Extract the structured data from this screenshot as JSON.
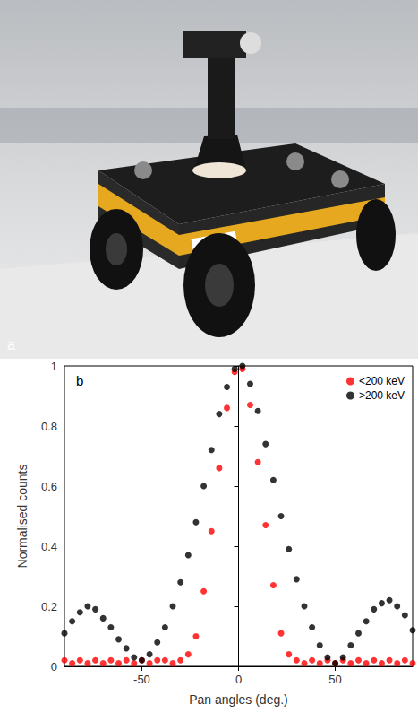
{
  "photo_panel": {
    "label": "a"
  },
  "chart_data": {
    "type": "scatter",
    "panel_label": "b",
    "xlabel": "Pan angles (deg.)",
    "ylabel": "Normalised counts",
    "x": [
      -90,
      -86,
      -82,
      -78,
      -74,
      -70,
      -66,
      -62,
      -58,
      -54,
      -50,
      -46,
      -42,
      -38,
      -34,
      -30,
      -26,
      -22,
      -18,
      -14,
      -10,
      -6,
      -2,
      2,
      6,
      10,
      14,
      18,
      22,
      26,
      30,
      34,
      38,
      42,
      46,
      50,
      54,
      58,
      62,
      66,
      70,
      74,
      78,
      82,
      86,
      90
    ],
    "series": [
      {
        "name": "<200 keV",
        "color": "#ff0000",
        "marker": "circle",
        "values": [
          0.02,
          0.01,
          0.02,
          0.01,
          0.02,
          0.01,
          0.02,
          0.01,
          0.02,
          0.01,
          0.02,
          0.01,
          0.02,
          0.02,
          0.01,
          0.02,
          0.04,
          0.1,
          0.25,
          0.45,
          0.66,
          0.86,
          0.98,
          0.99,
          0.87,
          0.68,
          0.47,
          0.27,
          0.11,
          0.04,
          0.02,
          0.01,
          0.02,
          0.01,
          0.02,
          0.01,
          0.02,
          0.01,
          0.02,
          0.01,
          0.02,
          0.01,
          0.02,
          0.01,
          0.02,
          0.01
        ]
      },
      {
        "name": ">200 keV",
        "color": "#000000",
        "marker": "circle",
        "values": [
          0.11,
          0.15,
          0.18,
          0.2,
          0.19,
          0.16,
          0.13,
          0.09,
          0.06,
          0.03,
          0.02,
          0.04,
          0.08,
          0.13,
          0.2,
          0.28,
          0.37,
          0.48,
          0.6,
          0.72,
          0.84,
          0.93,
          0.99,
          1.0,
          0.94,
          0.85,
          0.74,
          0.62,
          0.5,
          0.39,
          0.29,
          0.2,
          0.13,
          0.07,
          0.03,
          0.01,
          0.03,
          0.07,
          0.11,
          0.15,
          0.19,
          0.21,
          0.22,
          0.2,
          0.17,
          0.12
        ]
      }
    ],
    "xlim": [
      -90,
      90
    ],
    "xticks": [
      -50,
      0,
      50
    ],
    "ylim": [
      0,
      1
    ],
    "yticks": [
      0,
      0.2,
      0.4,
      0.6,
      0.8,
      1
    ],
    "grid": false,
    "legend": "upper right"
  }
}
